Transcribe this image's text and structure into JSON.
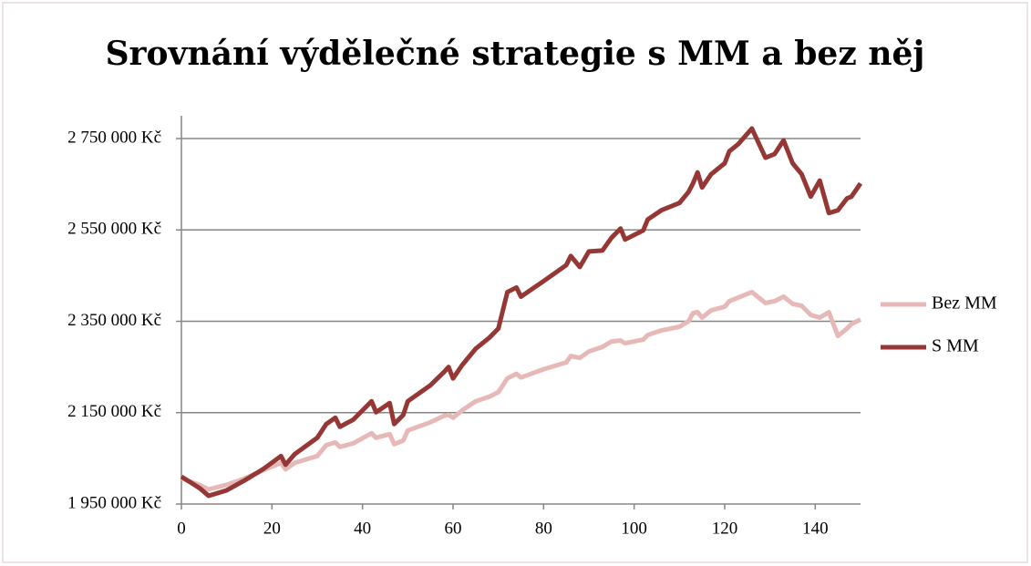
{
  "chart_data": {
    "type": "line",
    "title": "Srovnání výdělečné strategie s MM a bez něj",
    "x": [
      0,
      4,
      6,
      10,
      14,
      18,
      22,
      23,
      25,
      30,
      32,
      34,
      35,
      38,
      42,
      43,
      46,
      47,
      49,
      50,
      55,
      58,
      59,
      60,
      62,
      65,
      68,
      70,
      72,
      74,
      75,
      80,
      85,
      86,
      88,
      90,
      93,
      95,
      97,
      98,
      102,
      103,
      106,
      110,
      112,
      113,
      114,
      115,
      117,
      120,
      121,
      123,
      126,
      129,
      131,
      133,
      135,
      137,
      139,
      141,
      143,
      145,
      147,
      148,
      150
    ],
    "series": [
      {
        "name": "Bez MM",
        "color": "#e6b9b8",
        "values": [
          2006000,
          1992000,
          1982000,
          1992000,
          2006000,
          2024000,
          2040000,
          2026000,
          2040000,
          2055000,
          2079000,
          2085000,
          2075000,
          2083000,
          2105000,
          2095000,
          2103000,
          2081000,
          2089000,
          2111000,
          2129000,
          2143000,
          2145000,
          2139000,
          2155000,
          2175000,
          2185000,
          2195000,
          2225000,
          2235000,
          2227000,
          2245000,
          2260000,
          2274000,
          2270000,
          2284000,
          2294000,
          2306000,
          2308000,
          2302000,
          2310000,
          2320000,
          2330000,
          2338000,
          2350000,
          2368000,
          2370000,
          2358000,
          2374000,
          2382000,
          2394000,
          2402000,
          2414000,
          2390000,
          2394000,
          2404000,
          2388000,
          2384000,
          2364000,
          2358000,
          2370000,
          2318000,
          2334000,
          2344000,
          2354000
        ]
      },
      {
        "name": "S MM",
        "color": "#953735",
        "values": [
          2010000,
          1985000,
          1968000,
          1980000,
          2002000,
          2026000,
          2055000,
          2036000,
          2059000,
          2095000,
          2125000,
          2139000,
          2119000,
          2135000,
          2175000,
          2151000,
          2171000,
          2125000,
          2145000,
          2175000,
          2210000,
          2239000,
          2250000,
          2225000,
          2254000,
          2290000,
          2314000,
          2334000,
          2414000,
          2424000,
          2404000,
          2438000,
          2473000,
          2493000,
          2469000,
          2503000,
          2505000,
          2533000,
          2553000,
          2529000,
          2549000,
          2573000,
          2593000,
          2609000,
          2633000,
          2652000,
          2676000,
          2643000,
          2672000,
          2696000,
          2722000,
          2738000,
          2772000,
          2708000,
          2716000,
          2746000,
          2696000,
          2672000,
          2623000,
          2658000,
          2587000,
          2593000,
          2619000,
          2623000,
          2652000
        ]
      }
    ],
    "xlim": [
      0,
      150
    ],
    "xticks": [
      0,
      20,
      40,
      60,
      80,
      100,
      120,
      140
    ],
    "ylim": [
      1950000,
      2800000
    ],
    "yticks": [
      {
        "value": 1950000,
        "label": "1 950 000 Kč"
      },
      {
        "value": 2150000,
        "label": "2 150 000 Kč"
      },
      {
        "value": 2350000,
        "label": "2 350 000 Kč"
      },
      {
        "value": 2550000,
        "label": "2 550 000 Kč"
      },
      {
        "value": 2750000,
        "label": "2 750 000 Kč"
      }
    ],
    "grid": true,
    "legend": "right"
  }
}
